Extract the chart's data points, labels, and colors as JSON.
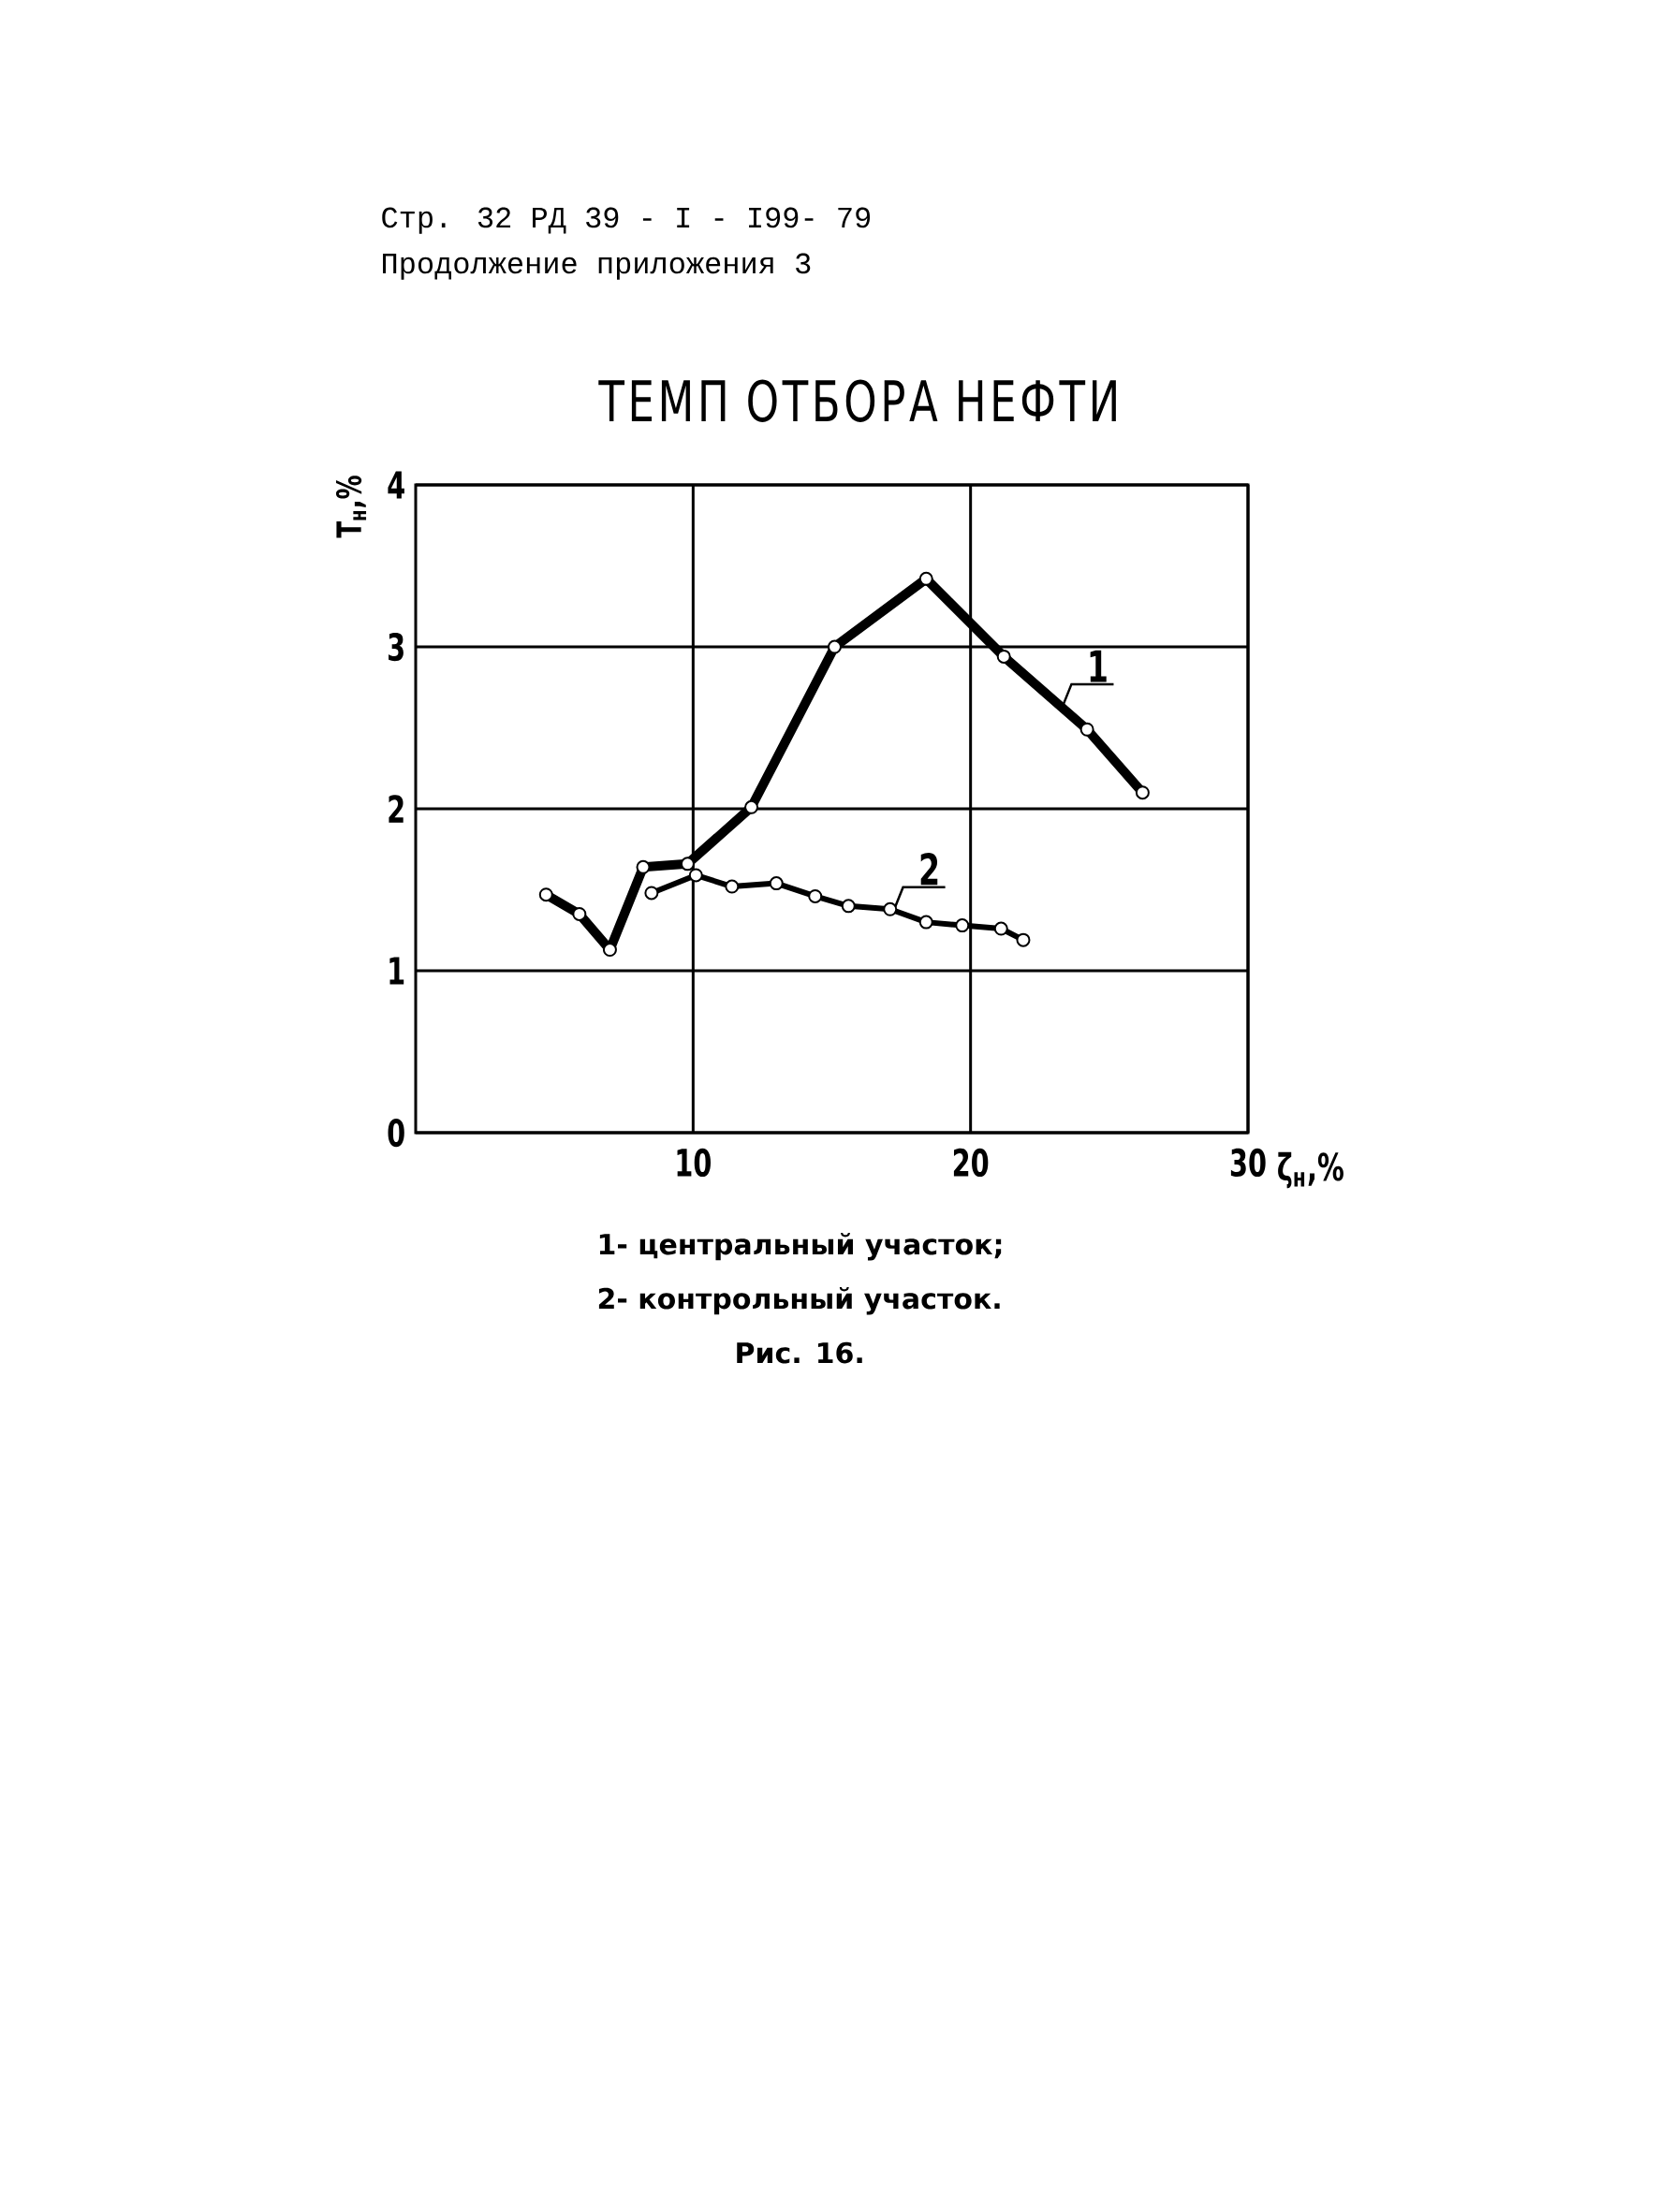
{
  "chart_data": {
    "type": "line",
    "title": "ТЕМП ОТБОРА НЕФТИ",
    "xlabel": "ζ$_{н}$,%",
    "ylabel": "Т$_{н}$,%",
    "xlim": [
      0,
      30
    ],
    "xticks": [
      10,
      20,
      30
    ],
    "ylim": [
      0,
      4
    ],
    "yticks": [
      0,
      1,
      2,
      3,
      4
    ],
    "grid": true,
    "marker": "circle",
    "line_style": "solid",
    "series": [
      {
        "name": "1",
        "color": "#000000",
        "x": [
          4.7,
          5.9,
          7.0,
          8.2,
          9.8,
          12.1,
          15.1,
          18.4,
          21.2,
          24.2,
          26.2
        ],
        "values": [
          1.47,
          1.35,
          1.13,
          1.64,
          1.66,
          2.01,
          3.0,
          3.42,
          2.94,
          2.49,
          2.1
        ]
      },
      {
        "name": "2",
        "color": "#000000",
        "x": [
          8.5,
          10.1,
          11.4,
          13.0,
          14.4,
          15.6,
          17.1,
          18.4,
          19.7,
          21.1,
          21.9
        ],
        "values": [
          1.48,
          1.59,
          1.52,
          1.54,
          1.46,
          1.4,
          1.38,
          1.3,
          1.28,
          1.26,
          1.19
        ]
      }
    ],
    "annotations": [
      "Стр. 32 РД 39 - I - I99- 79",
      "Продолжение приложения 3",
      "1- центральный участок;",
      "2- контрольный участок.",
      "Рис. 16."
    ]
  }
}
